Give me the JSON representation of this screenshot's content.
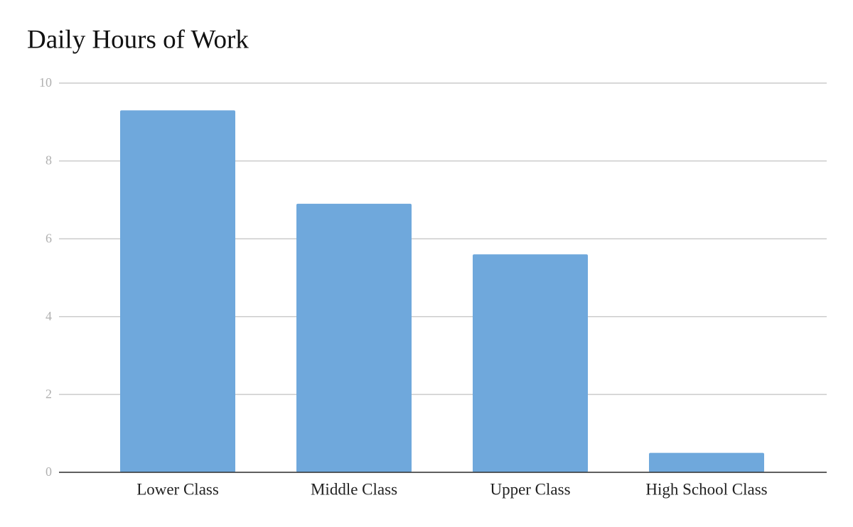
{
  "chart_data": {
    "type": "bar",
    "title": "Daily Hours of Work",
    "categories": [
      "Lower Class",
      "Middle Class",
      "Upper Class",
      "High School Class"
    ],
    "values": [
      9.3,
      6.9,
      5.6,
      0.5
    ],
    "color": "#6fa8dc",
    "ylim": [
      0,
      10
    ],
    "yticks": [
      0,
      2,
      4,
      6,
      8,
      10
    ],
    "grid": true
  }
}
